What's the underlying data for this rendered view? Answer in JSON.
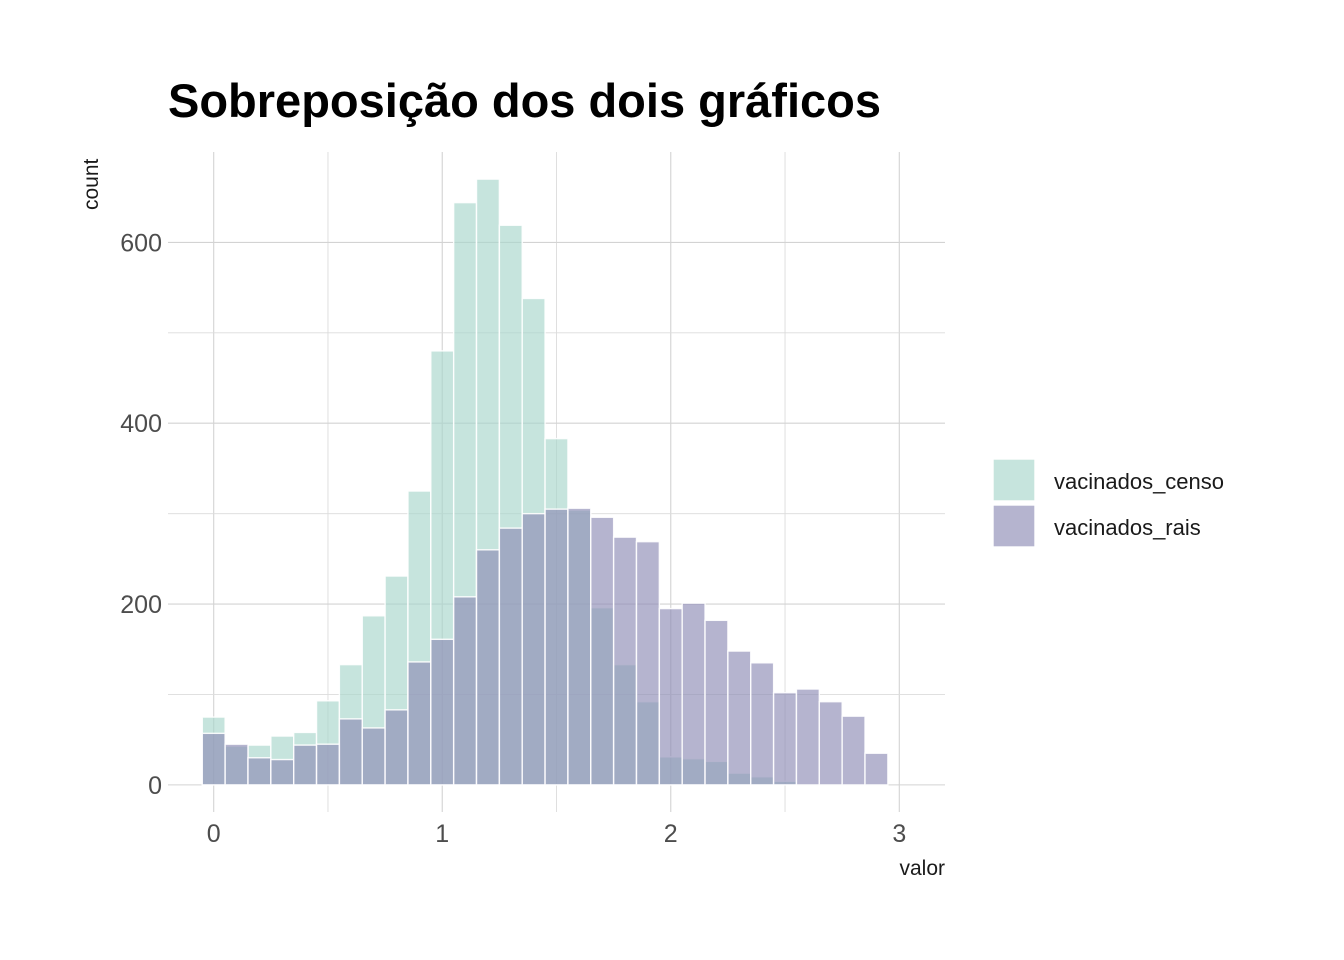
{
  "chart_data": {
    "type": "bar",
    "subtype": "overlapping-histogram",
    "title": "Sobreposição dos dois gráficos",
    "xlabel": "valor",
    "ylabel": "count",
    "xlim": [
      -0.2,
      3.2
    ],
    "ylim": [
      -30,
      700
    ],
    "x_ticks": [
      0,
      1,
      2,
      3
    ],
    "y_ticks": [
      0,
      200,
      400,
      600
    ],
    "grid": true,
    "legend_position": "right",
    "bin_width": 0.1,
    "bin_centers": [
      0,
      0.1,
      0.2,
      0.3,
      0.4,
      0.5,
      0.6,
      0.7,
      0.8,
      0.9,
      1.0,
      1.1,
      1.2,
      1.3,
      1.4,
      1.5,
      1.6,
      1.7,
      1.8,
      1.9,
      2.0,
      2.1,
      2.2,
      2.3,
      2.4,
      2.5,
      2.6,
      2.7,
      2.8,
      2.9,
      3.0
    ],
    "series": [
      {
        "name": "vacinados_censo",
        "color": "#a8d5cb",
        "values": [
          75,
          43,
          44,
          54,
          58,
          93,
          133,
          187,
          231,
          325,
          480,
          644,
          670,
          619,
          538,
          383,
          304,
          196,
          133,
          92,
          31,
          29,
          26,
          13,
          9,
          4,
          0,
          0,
          0,
          0,
          0
        ]
      },
      {
        "name": "vacinados_rais",
        "color": "#8e8cb5",
        "values": [
          57,
          45,
          30,
          28,
          44,
          45,
          73,
          63,
          83,
          136,
          161,
          208,
          260,
          284,
          300,
          305,
          306,
          296,
          274,
          269,
          195,
          201,
          182,
          148,
          135,
          102,
          106,
          92,
          76,
          35,
          0
        ]
      }
    ]
  }
}
